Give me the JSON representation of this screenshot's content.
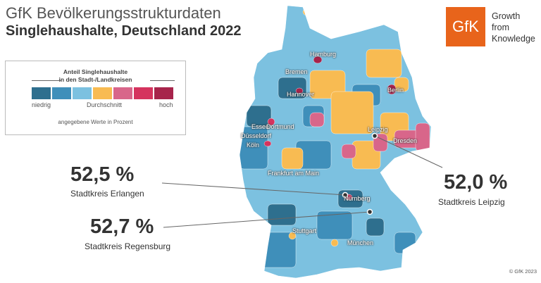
{
  "header": {
    "title": "GfK Bevölkerungsstrukturdaten",
    "subtitle": "Singlehaushalte, Deutschland 2022"
  },
  "legend": {
    "title_line1": "Anteil Singlehaushalte",
    "title_line2": "in den Stadt-/Landkreisen",
    "low": "niedrig",
    "mid": "Durchschnitt",
    "high": "hoch",
    "note": "angegebene Werte in Prozent",
    "colors": [
      "#2e6f8e",
      "#3f8fba",
      "#7cc1e0",
      "#f8bb52",
      "#d8668a",
      "#d5335e",
      "#a7244b"
    ]
  },
  "logo": {
    "text": "GfK",
    "tagline": [
      "Growth",
      "from",
      "Knowledge"
    ],
    "color": "#e8641b"
  },
  "cities": [
    "Hamburg",
    "Bremen",
    "Berlin",
    "Hannover",
    "Essen",
    "Dortmund",
    "Düsseldorf",
    "Köln",
    "Leipzig",
    "Dresden",
    "Frankfurt am Main",
    "Nürnberg",
    "Stuttgart",
    "München"
  ],
  "callouts": [
    {
      "value": "52,5 %",
      "label": "Stadtkreis Erlangen"
    },
    {
      "value": "52,7 %",
      "label": "Stadtkreis Regensburg"
    },
    {
      "value": "52,0 %",
      "label": "Stadtkreis Leipzig"
    }
  ],
  "copyright": "© GfK 2023"
}
